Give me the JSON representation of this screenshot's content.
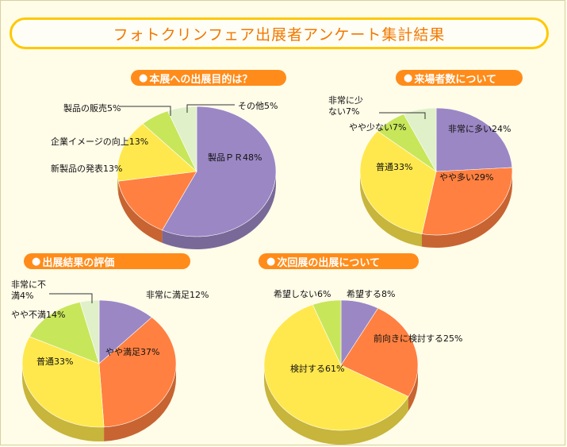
{
  "page": {
    "title": "フォトクリンフェア出展者アンケート集計結果"
  },
  "sections": [
    {
      "heading": "本展への出展目的は？"
    },
    {
      "heading": "来場者数について"
    },
    {
      "heading": "出展結果の評価"
    },
    {
      "heading": "次回展の出展について"
    }
  ],
  "chart_data": [
    {
      "type": "pie",
      "title": "本展への出展目的は？",
      "categories": [
        "製品ＰＲ",
        "新製品の発表",
        "企業イメージの向上",
        "製品の販売",
        "その他"
      ],
      "values": [
        48,
        13,
        13,
        5,
        5
      ],
      "labels": [
        "製品ＰＲ48%",
        "新製品の発表13%",
        "企業イメージの向上13%",
        "製品の販売5%",
        "その他5%"
      ],
      "colors": [
        "#9b87c4",
        "#ff8040",
        "#ffe84d",
        "#c8e65a",
        "#e0f0c8",
        "#7ad0ef"
      ]
    },
    {
      "type": "pie",
      "title": "来場者数について",
      "categories": [
        "非常に多い",
        "やや多い",
        "普通",
        "やや少ない",
        "非常に少ない"
      ],
      "values": [
        24,
        29,
        33,
        7,
        7
      ],
      "labels": [
        "非常に多い24%",
        "やや多い29%",
        "普通33%",
        "やや少ない7%",
        "非常に少ない7%"
      ],
      "colors": [
        "#9b87c4",
        "#ff8040",
        "#ffe84d",
        "#c8e65a",
        "#e0f0c8"
      ]
    },
    {
      "type": "pie",
      "title": "出展結果の評価",
      "categories": [
        "非常に満足",
        "やや満足",
        "普通",
        "やや不満",
        "非常に不満"
      ],
      "values": [
        12,
        37,
        33,
        14,
        4
      ],
      "labels": [
        "非常に満足12%",
        "やや満足37%",
        "普通33%",
        "やや不満14%",
        "非常に不満4%"
      ],
      "colors": [
        "#9b87c4",
        "#ff8040",
        "#ffe84d",
        "#c8e65a",
        "#e0f0c8"
      ]
    },
    {
      "type": "pie",
      "title": "次回展の出展について",
      "categories": [
        "希望する",
        "前向きに検討する",
        "検討する",
        "希望しない"
      ],
      "values": [
        8,
        25,
        61,
        6
      ],
      "labels": [
        "希望する8%",
        "前向きに検討する25%",
        "検討する61%",
        "希望しない6%"
      ],
      "colors": [
        "#9b87c4",
        "#ff8040",
        "#ffe84d",
        "#c8e65a"
      ]
    }
  ]
}
